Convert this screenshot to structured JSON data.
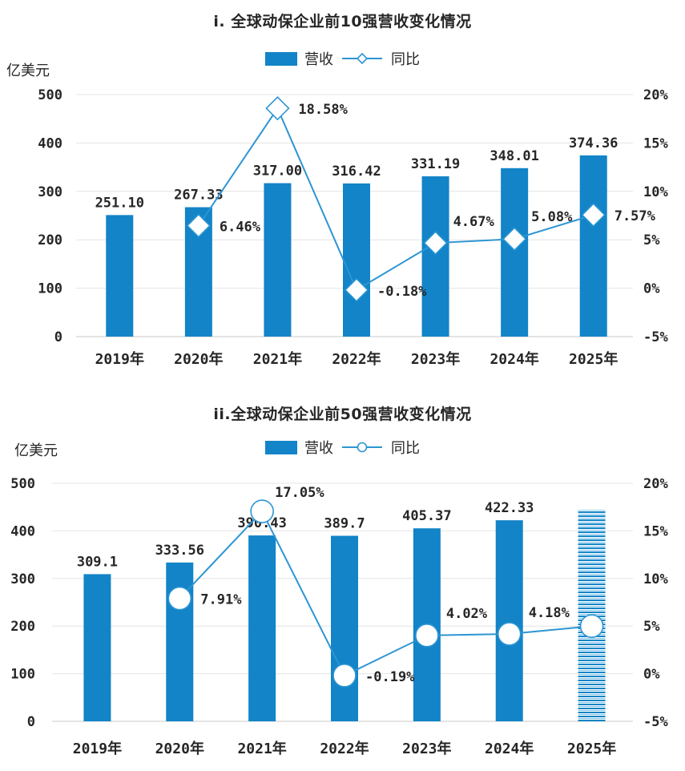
{
  "chart_data": [
    {
      "type": "bar+line",
      "title": "i. 全球动保企业前10强营收变化情况",
      "unit_label": "亿美元",
      "categories": [
        "2019年",
        "2020年",
        "2021年",
        "2022年",
        "2023年",
        "2024年",
        "2025年"
      ],
      "bar_series": {
        "name": "营收",
        "axis": "left",
        "values": [
          251.1,
          267.33,
          317.0,
          316.42,
          331.19,
          348.01,
          374.36
        ],
        "labels": [
          "251.10",
          "267.33",
          "317.00",
          "316.42",
          "331.19",
          "348.01",
          "374.36"
        ],
        "hatched_last": false
      },
      "line_series": {
        "name": "同比",
        "axis": "right",
        "marker": "diamond",
        "values": [
          null,
          6.46,
          18.58,
          -0.18,
          4.67,
          5.08,
          7.57
        ],
        "labels": [
          null,
          "6.46%",
          "18.58%",
          "-0.18%",
          "4.67%",
          "5.08%",
          "7.57%"
        ]
      },
      "left_axis": {
        "min": 0,
        "max": 500,
        "step": 100,
        "tick_labels": [
          "500",
          "400",
          "300",
          "200",
          "100",
          "0"
        ]
      },
      "right_axis": {
        "min": -5,
        "max": 20,
        "step": 5,
        "tick_labels": [
          "20%",
          "15%",
          "10%",
          "5%",
          "0%",
          "-5%"
        ]
      },
      "grid": true,
      "legend_position": "top-center",
      "colors": {
        "bar": "#1284C7",
        "line": "#2D95D3",
        "grid": "#e4e4e4",
        "zero_line": "#c9c9c9",
        "text": "#262626"
      }
    },
    {
      "type": "bar+line",
      "title": "ii.全球动保企业前50强营收变化情况",
      "unit_label": "亿美元",
      "categories": [
        "2019年",
        "2020年",
        "2021年",
        "2022年",
        "2023年",
        "2024年",
        "2025年"
      ],
      "bar_series": {
        "name": "营收",
        "axis": "left",
        "values": [
          309.1,
          333.56,
          390.43,
          389.7,
          405.37,
          422.33,
          444
        ],
        "labels": [
          "309.1",
          "333.56",
          "390.43",
          "389.7",
          "405.37",
          "422.33",
          null
        ],
        "hatched_last": true
      },
      "line_series": {
        "name": "同比",
        "axis": "right",
        "marker": "circle",
        "values": [
          null,
          7.91,
          17.05,
          -0.19,
          4.02,
          4.18,
          5.0
        ],
        "labels": [
          null,
          "7.91%",
          "17.05%",
          "-0.19%",
          "4.02%",
          "4.18%",
          null
        ]
      },
      "left_axis": {
        "min": 0,
        "max": 500,
        "step": 100,
        "tick_labels": [
          "500",
          "400",
          "300",
          "200",
          "100",
          "0"
        ]
      },
      "right_axis": {
        "min": -5,
        "max": 20,
        "step": 5,
        "tick_labels": [
          "20%",
          "15%",
          "10%",
          "5%",
          "0%",
          "-5%"
        ]
      },
      "grid": true,
      "legend_position": "top-center",
      "colors": {
        "bar": "#1284C7",
        "line": "#2D95D3",
        "grid": "#e4e4e4",
        "zero_line": "#c9c9c9",
        "text": "#262626"
      }
    }
  ]
}
